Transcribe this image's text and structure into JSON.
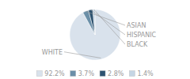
{
  "chart_data": {
    "type": "pie",
    "categories": [
      "WHITE",
      "ASIAN",
      "HISPANIC",
      "BLACK"
    ],
    "values": [
      92.2,
      3.7,
      2.8,
      1.4
    ],
    "value_labels": [
      "92.2%",
      "3.7%",
      "2.8%",
      "1.4%"
    ],
    "colors": [
      "#d9e2ec",
      "#6b8fa8",
      "#2e5370",
      "#c5d5e4"
    ],
    "legend": "bottom"
  }
}
